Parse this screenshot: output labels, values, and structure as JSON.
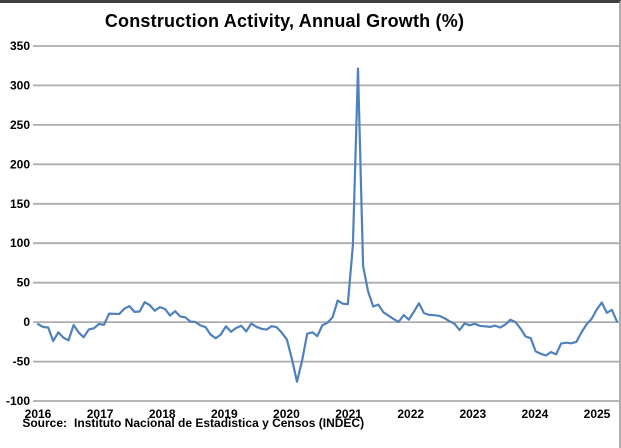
{
  "source": {
    "label": "Source:",
    "text": "Instituto Nacional de Estadistica y Censos (INDEC)"
  },
  "colors": {
    "line": "#4F81BD",
    "gridline": "#ADADAD",
    "axis_text": "#000000",
    "background": "#FFFFFF",
    "frame_top": "#3F3F3F",
    "frame_right": "#ADADAD"
  },
  "chart_data": {
    "type": "line",
    "title": "Construction Activity, Annual Growth (%)",
    "xlabel": "",
    "ylabel": "",
    "frequency": "monthly",
    "x_range": [
      "2016-01",
      "2025-07"
    ],
    "ylim": [
      -100,
      350
    ],
    "yticks": [
      350,
      300,
      250,
      200,
      150,
      100,
      50,
      0,
      -50,
      -100
    ],
    "xtick_labels": [
      "2016",
      "2017",
      "2018",
      "2019",
      "2020",
      "2021",
      "2022",
      "2023",
      "2024",
      "2025"
    ],
    "grid": "horizontal",
    "legend_position": "none",
    "series": [
      {
        "name": "Construction activity, annual growth (%)",
        "color": "#4F81BD",
        "values": [
          -2.5,
          -6.2,
          -6.8,
          -24.1,
          -12.9,
          -19.6,
          -23.1,
          -3.7,
          -13.1,
          -19.2,
          -9.4,
          -7.8,
          -2.4,
          -3.4,
          10.8,
          10.5,
          10.3,
          17.0,
          20.3,
          13.0,
          13.4,
          25.3,
          21.6,
          14.5,
          19.0,
          16.6,
          8.3,
          14.0,
          7.1,
          6.1,
          0.7,
          0.1,
          -4.2,
          -6.4,
          -15.9,
          -20.5,
          -15.7,
          -5.3,
          -12.3,
          -7.5,
          -4.6,
          -11.8,
          -1.7,
          -5.9,
          -8.5,
          -9.5,
          -5.2,
          -6.4,
          -13.5,
          -22.1,
          -46.8,
          -75.6,
          -48.6,
          -14.8,
          -12.9,
          -17.7,
          -3.9,
          -0.9,
          6.2,
          27.4,
          23.3,
          22.7,
          97.6,
          321.3,
          70.9,
          38.8,
          19.8,
          22.2,
          12.4,
          8.3,
          4.1,
          0.3,
          8.9,
          3.2,
          12.9,
          23.8,
          11.4,
          9.1,
          8.8,
          8.0,
          5.1,
          1.2,
          -2.2,
          -10.1,
          -1.5,
          -4.1,
          -2.0,
          -4.8,
          -5.3,
          -6.1,
          -4.4,
          -6.8,
          -3.2,
          2.9,
          0.2,
          -8.1,
          -18.3,
          -20.4,
          -37.1,
          -40.2,
          -42.3,
          -38.0,
          -40.8,
          -27.3,
          -26.1,
          -26.9,
          -24.9,
          -13.2,
          -2.9,
          4.1,
          15.9,
          24.8,
          11.8,
          15.5,
          0.7
        ]
      }
    ]
  }
}
